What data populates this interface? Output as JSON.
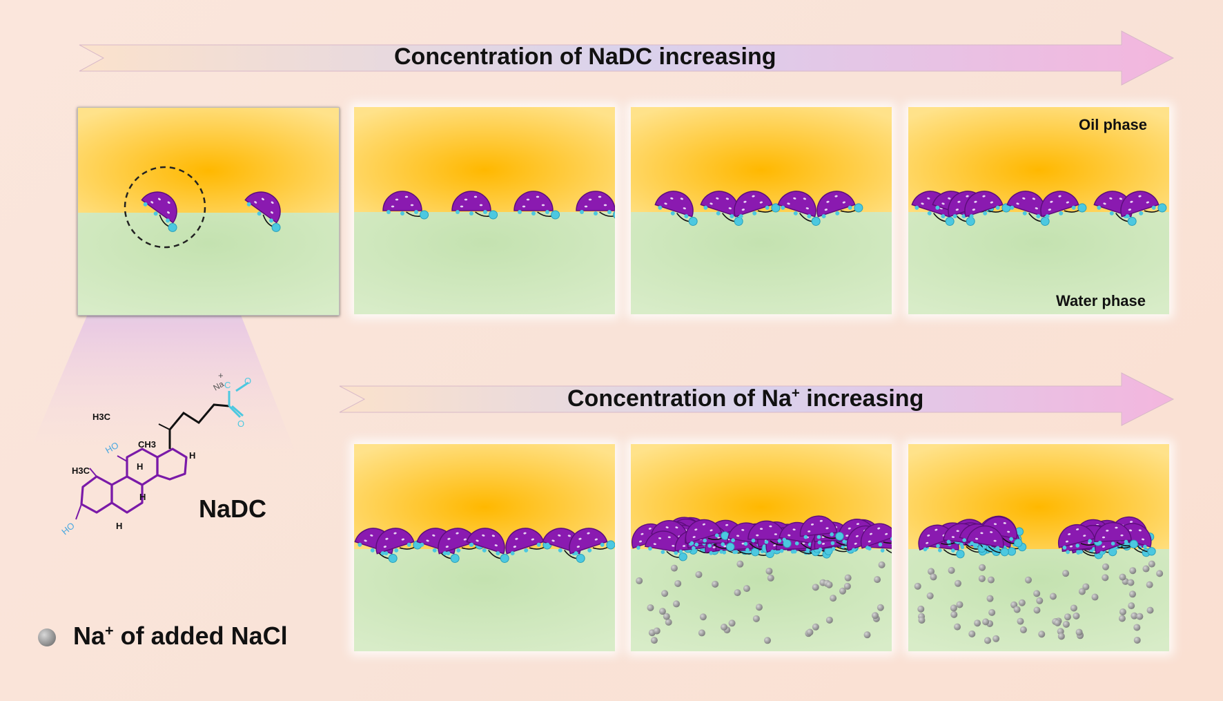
{
  "arrow_top": {
    "label": "Concentration of NaDC increasing"
  },
  "arrow_bottom": {
    "label_main": "Concentration of Na",
    "label_sup": "+",
    "label_tail": " increasing"
  },
  "phases": {
    "oil": "Oil phase",
    "water": "Water phase"
  },
  "molecule": {
    "name": "NaDC",
    "atoms": {
      "h3c_top": "H3C",
      "ch3": "CH3",
      "ho_top": "HO",
      "h3c_bottom": "H3C",
      "ho_bottom": "HO",
      "h": "H",
      "o": "O",
      "c": "C",
      "na": "Na",
      "plus": "+"
    }
  },
  "legend": {
    "text_main": "Na",
    "text_sup": "+",
    "text_tail": " of added NaCl"
  },
  "colors": {
    "oil": "#ffbf1a",
    "water": "#c9e4b8",
    "surfactant": "#8a1ab0",
    "head_ion": "#4cc8e0",
    "na_ion": "#9a9a9a",
    "arrow_start": "#fbe0cc",
    "arrow_end": "#f2b8e0"
  }
}
